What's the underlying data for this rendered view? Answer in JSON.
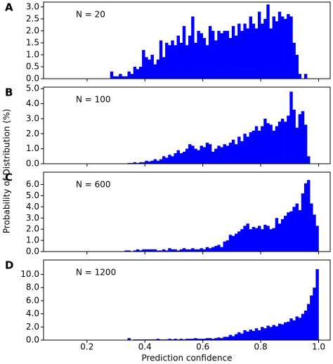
{
  "chart_data": [
    {
      "type": "histogram",
      "panel_label": "A",
      "annotation": "N = 20",
      "color": "#0000ff",
      "ylabel": "Probability of Distribution (%)",
      "xlim": [
        0.05,
        1.04
      ],
      "ylim": [
        0,
        3.2
      ],
      "yticks": [
        {
          "value": 0,
          "label": "0.0"
        },
        0.5,
        {
          "value": 1,
          "label": "1.0"
        },
        1.5,
        {
          "value": 2,
          "label": "2.0"
        },
        2.5,
        {
          "value": 3,
          "label": "3.0"
        }
      ],
      "bins": [
        0.28,
        0.29,
        0.3,
        0.31,
        0.32,
        0.33,
        0.34,
        0.35,
        0.36,
        0.37,
        0.38,
        0.39,
        0.4,
        0.41,
        0.42,
        0.43,
        0.44,
        0.45,
        0.46,
        0.47,
        0.48,
        0.49,
        0.5,
        0.51,
        0.52,
        0.53,
        0.54,
        0.55,
        0.56,
        0.57,
        0.58,
        0.59,
        0.6,
        0.61,
        0.62,
        0.63,
        0.64,
        0.65,
        0.66,
        0.67,
        0.68,
        0.69,
        0.7,
        0.71,
        0.72,
        0.73,
        0.74,
        0.75,
        0.76,
        0.77,
        0.78,
        0.79,
        0.8,
        0.81,
        0.82,
        0.83,
        0.84,
        0.85,
        0.86,
        0.87,
        0.88,
        0.89,
        0.9,
        0.91,
        0.92,
        0.93,
        0.94,
        0.95,
        0.96
      ],
      "values": [
        0.3,
        0.1,
        0.1,
        0.2,
        0.1,
        0.1,
        0.3,
        0.2,
        0.5,
        0.4,
        0.5,
        1.2,
        0.9,
        0.8,
        1.0,
        0.6,
        0.8,
        1.6,
        0.9,
        1.5,
        1.4,
        1.6,
        1.4,
        1.8,
        1.5,
        2.2,
        1.4,
        1.8,
        2.6,
        1.5,
        2.0,
        1.9,
        1.7,
        1.4,
        2.2,
        2.0,
        1.6,
        2.0,
        1.9,
        2.0,
        2.0,
        1.7,
        2.2,
        1.8,
        2.3,
        2.0,
        2.3,
        2.1,
        2.6,
        2.3,
        2.1,
        2.8,
        2.3,
        2.5,
        3.1,
        2.1,
        2.6,
        2.4,
        2.8,
        2.6,
        2.5,
        2.7,
        2.6,
        1.5,
        1.0,
        0.2,
        0,
        0.2
      ]
    },
    {
      "type": "histogram",
      "panel_label": "B",
      "annotation": "N = 100",
      "color": "#0000ff",
      "xlim": [
        0.05,
        1.04
      ],
      "ylim": [
        0,
        5.1
      ],
      "yticks": [
        {
          "value": 0,
          "label": "0.0"
        },
        {
          "value": 1,
          "label": "1.0"
        },
        {
          "value": 2,
          "label": "2.0"
        },
        {
          "value": 3,
          "label": "3.0"
        },
        {
          "value": 4,
          "label": "4.0"
        },
        {
          "value": 5,
          "label": "5.0"
        }
      ],
      "bins": [
        0.34,
        0.35,
        0.36,
        0.37,
        0.38,
        0.39,
        0.4,
        0.41,
        0.42,
        0.43,
        0.44,
        0.45,
        0.46,
        0.47,
        0.48,
        0.49,
        0.5,
        0.51,
        0.52,
        0.53,
        0.54,
        0.55,
        0.56,
        0.57,
        0.58,
        0.59,
        0.6,
        0.61,
        0.62,
        0.63,
        0.64,
        0.65,
        0.66,
        0.67,
        0.68,
        0.69,
        0.7,
        0.71,
        0.72,
        0.73,
        0.74,
        0.75,
        0.76,
        0.77,
        0.78,
        0.79,
        0.8,
        0.81,
        0.82,
        0.83,
        0.84,
        0.85,
        0.86,
        0.87,
        0.88,
        0.89,
        0.9,
        0.91,
        0.92,
        0.93,
        0.94,
        0.95,
        0.96,
        0.97
      ],
      "values": [
        0.05,
        0.05,
        0.1,
        0.05,
        0.1,
        0.1,
        0.2,
        0.15,
        0.2,
        0.3,
        0.2,
        0.3,
        0.5,
        0.4,
        0.6,
        0.5,
        0.7,
        0.9,
        0.7,
        0.8,
        1.0,
        1.3,
        1.2,
        1.0,
        0.9,
        1.2,
        1.1,
        1.4,
        1.3,
        0.8,
        1.0,
        1.2,
        1.1,
        1.3,
        1.2,
        1.4,
        1.6,
        1.3,
        1.8,
        1.5,
        2.0,
        1.8,
        2.1,
        2.2,
        2.5,
        2.2,
        2.5,
        3.0,
        2.7,
        2.6,
        2.2,
        2.5,
        2.8,
        3.0,
        2.8,
        3.2,
        4.8,
        3.6,
        2.4,
        3.3,
        3.5,
        2.6,
        0.5
      ]
    },
    {
      "type": "histogram",
      "panel_label": "C",
      "annotation": "N = 600",
      "color": "#0000ff",
      "xlim": [
        0.05,
        1.04
      ],
      "ylim": [
        0,
        7.1
      ],
      "yticks": [
        {
          "value": 0,
          "label": "0.0"
        },
        {
          "value": 1,
          "label": "1.0"
        },
        {
          "value": 2,
          "label": "2.0"
        },
        {
          "value": 3,
          "label": "3.0"
        },
        {
          "value": 4,
          "label": "4.0"
        },
        {
          "value": 5,
          "label": "5.0"
        },
        {
          "value": 6,
          "label": "6.0"
        }
      ],
      "bins": [
        0.33,
        0.34,
        0.35,
        0.36,
        0.37,
        0.38,
        0.39,
        0.4,
        0.41,
        0.42,
        0.43,
        0.44,
        0.45,
        0.46,
        0.47,
        0.48,
        0.49,
        0.5,
        0.51,
        0.52,
        0.53,
        0.54,
        0.55,
        0.56,
        0.57,
        0.58,
        0.59,
        0.6,
        0.61,
        0.62,
        0.63,
        0.64,
        0.65,
        0.66,
        0.67,
        0.68,
        0.69,
        0.7,
        0.71,
        0.72,
        0.73,
        0.74,
        0.75,
        0.76,
        0.77,
        0.78,
        0.79,
        0.8,
        0.81,
        0.82,
        0.83,
        0.84,
        0.85,
        0.86,
        0.87,
        0.88,
        0.89,
        0.9,
        0.91,
        0.92,
        0.93,
        0.94,
        0.95,
        0.96,
        0.97,
        0.98,
        0.99,
        1.0
      ],
      "values": [
        0.1,
        0.1,
        0,
        0.1,
        0.2,
        0.1,
        0.2,
        0.2,
        0.2,
        0.2,
        0.2,
        0.1,
        0.1,
        0.2,
        0.1,
        0.3,
        0.2,
        0.2,
        0.1,
        0.2,
        0.3,
        0.2,
        0.2,
        0.3,
        0.2,
        0.2,
        0.3,
        0.2,
        0.4,
        0.3,
        0.4,
        0.5,
        0.6,
        0.4,
        0.9,
        1.0,
        1.5,
        1.4,
        1.6,
        1.8,
        2.0,
        2.3,
        2.5,
        2.0,
        2.2,
        2.1,
        2.3,
        2.0,
        2.4,
        2.3,
        2.0,
        2.1,
        3.0,
        2.5,
        2.9,
        3.2,
        3.5,
        3.6,
        4.0,
        4.3,
        3.7,
        5.2,
        6.1,
        6.4,
        4.3,
        3.3,
        2.3
      ]
    },
    {
      "type": "histogram",
      "panel_label": "D",
      "annotation": "N = 1200",
      "color": "#0000ff",
      "xlabel": "Prediction confidence",
      "xlim": [
        0.05,
        1.04
      ],
      "ylim": [
        0,
        12.2
      ],
      "xticks": [
        0.2,
        0.4,
        0.6,
        0.8,
        {
          "value": 1,
          "label": "1.0"
        }
      ],
      "yticks": [
        {
          "value": 0,
          "label": "0.0"
        },
        {
          "value": 2,
          "label": "2.0"
        },
        {
          "value": 4,
          "label": "4.0"
        },
        {
          "value": 6,
          "label": "6.0"
        },
        {
          "value": 8,
          "label": "8.0"
        },
        {
          "value": 10,
          "label": "10.0"
        }
      ],
      "bins": [
        0.33,
        0.34,
        0.35,
        0.36,
        0.37,
        0.38,
        0.39,
        0.4,
        0.41,
        0.42,
        0.43,
        0.44,
        0.45,
        0.46,
        0.47,
        0.48,
        0.49,
        0.5,
        0.51,
        0.52,
        0.53,
        0.54,
        0.55,
        0.56,
        0.57,
        0.58,
        0.59,
        0.6,
        0.61,
        0.62,
        0.63,
        0.64,
        0.65,
        0.66,
        0.67,
        0.68,
        0.69,
        0.7,
        0.71,
        0.72,
        0.73,
        0.74,
        0.75,
        0.76,
        0.77,
        0.78,
        0.79,
        0.8,
        0.81,
        0.82,
        0.83,
        0.84,
        0.85,
        0.86,
        0.87,
        0.88,
        0.89,
        0.9,
        0.91,
        0.92,
        0.93,
        0.94,
        0.95,
        0.96,
        0.97,
        0.98,
        0.99,
        1.0
      ],
      "values": [
        0,
        0.3,
        0,
        0.1,
        0.1,
        0.1,
        0.1,
        0.1,
        0.1,
        0.1,
        0.1,
        0.2,
        0.1,
        0.1,
        0.1,
        0.2,
        0.1,
        0.2,
        0.1,
        0.2,
        0.1,
        0.2,
        0.2,
        0.2,
        0.3,
        0.2,
        0.2,
        0.2,
        0.3,
        0.3,
        0.2,
        0.3,
        0.4,
        0.3,
        0.5,
        0.5,
        0.8,
        0.6,
        0.9,
        1.2,
        1.0,
        1.5,
        1.3,
        1.6,
        1.4,
        1.8,
        1.5,
        2.0,
        1.8,
        2.2,
        2.0,
        2.3,
        2.1,
        2.5,
        2.4,
        2.7,
        2.8,
        3.3,
        3.0,
        3.6,
        3.4,
        4.0,
        4.5,
        5.5,
        6.8,
        8.0,
        10.8
      ]
    }
  ]
}
